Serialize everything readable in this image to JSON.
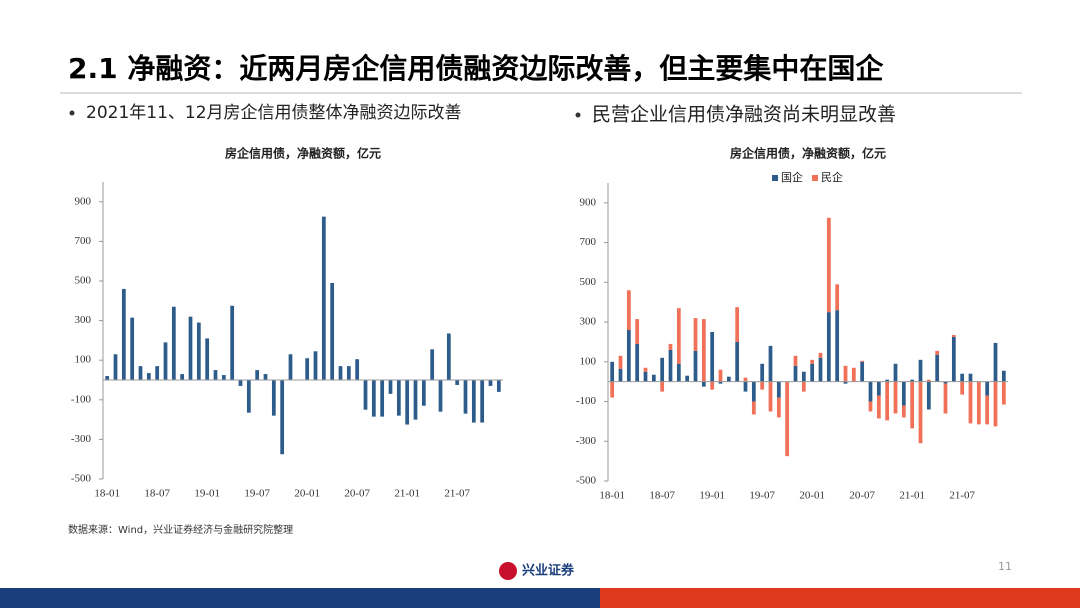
{
  "slide": {
    "title": "2.1 净融资：近两月房企信用债融资边际改善，但主要集中在国企",
    "bullets": [
      "2021年11、12月房企信用债整体净融资边际改善",
      "民营企业信用债净融资尚未明显改善"
    ],
    "source": "数据来源：Wind，兴业证券经济与金融研究院整理",
    "logo": "兴业证券",
    "page": "11"
  },
  "chart_data": [
    {
      "type": "bar",
      "title": "房企信用债，净融资额，亿元",
      "categories": [
        "18-01",
        null,
        null,
        null,
        null,
        null,
        "18-07",
        null,
        null,
        null,
        null,
        null,
        "19-01",
        null,
        null,
        null,
        null,
        null,
        "19-07",
        null,
        null,
        null,
        null,
        null,
        "20-01",
        null,
        null,
        null,
        null,
        null,
        "20-07",
        null,
        null,
        null,
        null,
        null,
        "21-01",
        null,
        null,
        null,
        null,
        null,
        "21-07",
        null,
        null,
        null,
        null,
        null
      ],
      "values": [
        20,
        130,
        460,
        315,
        70,
        35,
        70,
        190,
        370,
        30,
        320,
        290,
        210,
        50,
        25,
        375,
        -30,
        -165,
        50,
        30,
        -180,
        -375,
        130,
        0,
        110,
        145,
        825,
        490,
        70,
        70,
        105,
        -150,
        -185,
        -185,
        -70,
        -180,
        -225,
        -200,
        -130,
        155,
        -160,
        235,
        -25,
        -170,
        -215,
        -215,
        -30,
        -60
      ],
      "color": "#2e5c8a",
      "ylim": [
        -500,
        1000
      ],
      "yticks": [
        -500,
        -300,
        -100,
        100,
        300,
        500,
        700,
        900
      ]
    },
    {
      "type": "stacked_bar",
      "title": "房企信用债，净融资额，亿元",
      "categories": [
        "18-01",
        null,
        null,
        null,
        null,
        null,
        "18-07",
        null,
        null,
        null,
        null,
        null,
        "19-01",
        null,
        null,
        null,
        null,
        null,
        "19-07",
        null,
        null,
        null,
        null,
        null,
        "20-01",
        null,
        null,
        null,
        null,
        null,
        "20-07",
        null,
        null,
        null,
        null,
        null,
        "21-01",
        null,
        null,
        null,
        null,
        null,
        "21-07",
        null,
        null,
        null,
        null,
        null
      ],
      "series": [
        {
          "name": "国企",
          "color": "#2e5c8a",
          "values": [
            100,
            65,
            260,
            190,
            50,
            35,
            120,
            160,
            90,
            30,
            155,
            -25,
            250,
            -10,
            25,
            200,
            -50,
            -100,
            90,
            180,
            -80,
            0,
            80,
            50,
            90,
            120,
            350,
            360,
            -10,
            0,
            100,
            -100,
            -70,
            10,
            90,
            -120,
            10,
            110,
            -140,
            135,
            -10,
            225,
            40,
            40,
            0,
            -70,
            195,
            55
          ]
        },
        {
          "name": "民企",
          "color": "#f07058",
          "values": [
            -80,
            65,
            200,
            125,
            20,
            0,
            -50,
            30,
            280,
            0,
            165,
            315,
            -40,
            60,
            0,
            175,
            20,
            -65,
            -40,
            -150,
            -100,
            -375,
            50,
            -50,
            20,
            25,
            475,
            130,
            80,
            70,
            5,
            -50,
            -115,
            -195,
            -160,
            -60,
            -235,
            -310,
            10,
            20,
            -150,
            10,
            -65,
            -210,
            -215,
            -145,
            -225,
            -115
          ]
        }
      ],
      "ylim": [
        -500,
        1000
      ],
      "yticks": [
        -500,
        -300,
        -100,
        100,
        300,
        500,
        700,
        900
      ],
      "legend": "top"
    }
  ]
}
